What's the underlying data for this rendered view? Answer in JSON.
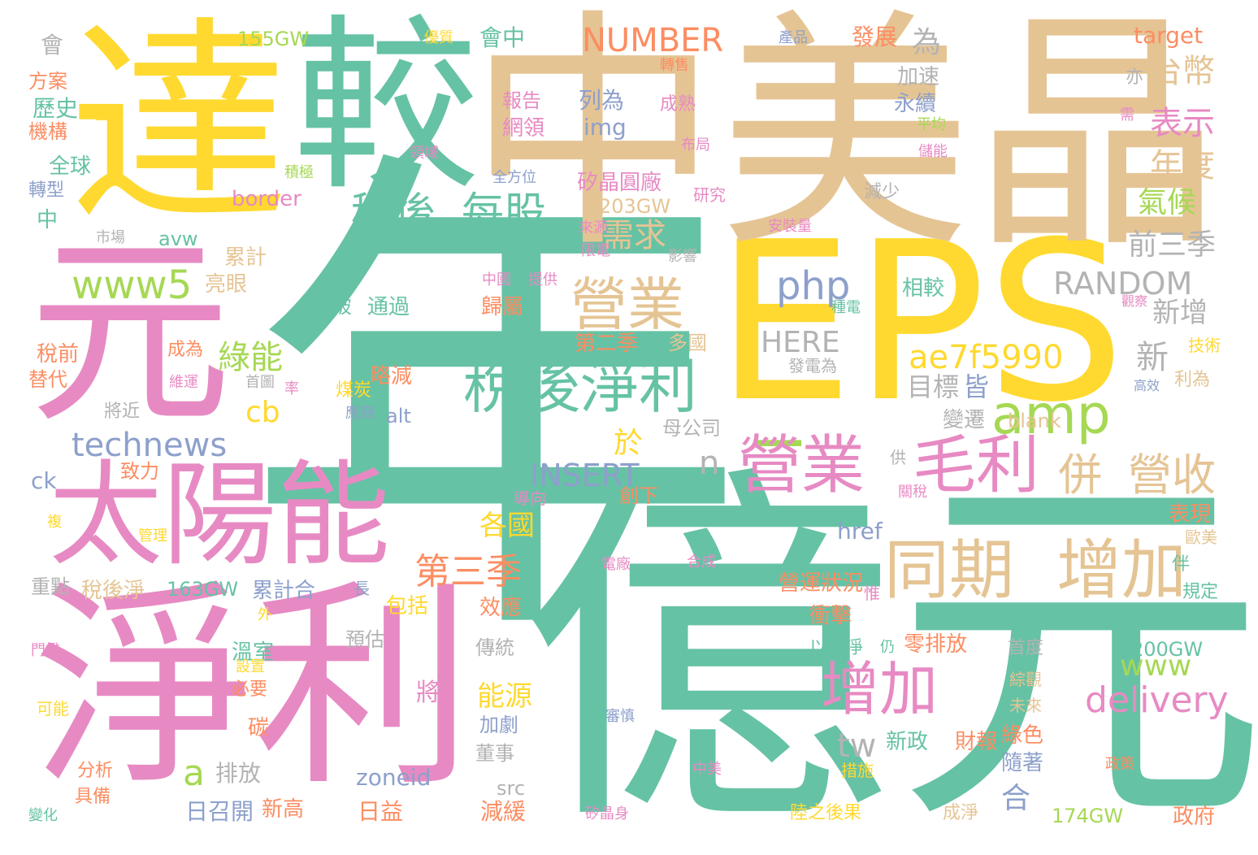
{
  "palette": {
    "green": "#66c2a5",
    "pink": "#e78ac3",
    "tan": "#e5c494",
    "yellow": "#ffd92f",
    "lime": "#a6d854",
    "orange": "#fc8d62",
    "blue": "#8da0cb",
    "gray": "#b3b3b3"
  },
  "words": [
    {
      "text": "年",
      "color": "green"
    },
    {
      "text": "億元",
      "color": "green"
    },
    {
      "text": "EPS",
      "color": "yellow"
    },
    {
      "text": "中美晶",
      "color": "tan"
    },
    {
      "text": "達",
      "color": "yellow"
    },
    {
      "text": "較",
      "color": "green"
    },
    {
      "text": "元",
      "color": "pink"
    },
    {
      "text": "太陽能",
      "color": "pink"
    },
    {
      "text": "淨利",
      "color": "pink"
    },
    {
      "text": "_",
      "color": "lime"
    },
    {
      "text": "稅後淨利",
      "color": "green"
    },
    {
      "text": "營業",
      "color": "pink"
    },
    {
      "text": "毛利",
      "color": "pink"
    },
    {
      "text": "同期",
      "color": "tan"
    },
    {
      "text": "增加",
      "color": "tan"
    },
    {
      "text": "增加",
      "color": "pink"
    },
    {
      "text": "營業",
      "color": "tan"
    },
    {
      "text": "稅後",
      "color": "green"
    },
    {
      "text": "每股",
      "color": "green"
    },
    {
      "text": "amp",
      "color": "lime"
    },
    {
      "text": "併",
      "color": "tan"
    },
    {
      "text": "營收",
      "color": "tan"
    },
    {
      "text": "ae7f5990",
      "color": "yellow"
    },
    {
      "text": "delivery",
      "color": "pink"
    },
    {
      "text": "RANDOM",
      "color": "gray"
    },
    {
      "text": "php",
      "color": "blue"
    },
    {
      "text": "www5",
      "color": "lime"
    },
    {
      "text": "technews",
      "color": "blue"
    },
    {
      "text": "NUMBER",
      "color": "orange"
    },
    {
      "text": "INSERT",
      "color": "blue"
    },
    {
      "text": "HERE",
      "color": "gray"
    },
    {
      "text": "綠能",
      "color": "lime"
    },
    {
      "text": "cb",
      "color": "yellow"
    },
    {
      "text": "第三季",
      "color": "orange"
    },
    {
      "text": "需求",
      "color": "tan"
    },
    {
      "text": "台幣",
      "color": "tan"
    },
    {
      "text": "表示",
      "color": "pink"
    },
    {
      "text": "年度",
      "color": "tan"
    },
    {
      "text": "氣候",
      "color": "lime"
    },
    {
      "text": "前三季",
      "color": "gray"
    },
    {
      "text": "新增",
      "color": "gray"
    },
    {
      "text": "新",
      "color": "gray"
    },
    {
      "text": "目標",
      "color": "gray"
    },
    {
      "text": "皆",
      "color": "blue"
    },
    {
      "text": "www",
      "color": "lime"
    },
    {
      "text": "a",
      "color": "lime"
    },
    {
      "text": "n",
      "color": "gray"
    },
    {
      "text": "tw",
      "color": "gray"
    },
    {
      "text": "各國",
      "color": "yellow"
    },
    {
      "text": "能源",
      "color": "yellow"
    },
    {
      "text": "合",
      "color": "blue"
    },
    {
      "text": "於",
      "color": "yellow"
    },
    {
      "text": "發展",
      "color": "orange"
    },
    {
      "text": "為",
      "color": "gray"
    },
    {
      "text": "target",
      "color": "orange"
    },
    {
      "text": "會中",
      "color": "green"
    },
    {
      "text": "155GW",
      "color": "lime"
    },
    {
      "text": "203GW",
      "color": "tan"
    },
    {
      "text": "163GW",
      "color": "green"
    },
    {
      "text": "200GW",
      "color": "green"
    },
    {
      "text": "174GW",
      "color": "lime"
    },
    {
      "text": "border",
      "color": "pink"
    },
    {
      "text": "avw",
      "color": "green"
    },
    {
      "text": "img",
      "color": "blue"
    },
    {
      "text": "href",
      "color": "blue"
    },
    {
      "text": "zoneid",
      "color": "blue"
    },
    {
      "text": "src",
      "color": "gray"
    },
    {
      "text": "blank",
      "color": "tan"
    },
    {
      "text": "alt",
      "color": "blue"
    },
    {
      "text": "ck",
      "color": "blue"
    },
    {
      "text": "列為",
      "color": "blue"
    },
    {
      "text": "網領",
      "color": "pink"
    },
    {
      "text": "報告",
      "color": "pink"
    },
    {
      "text": "加速",
      "color": "gray"
    },
    {
      "text": "永續",
      "color": "blue"
    },
    {
      "text": "矽晶圓廠",
      "color": "pink"
    },
    {
      "text": "營運狀況",
      "color": "orange"
    },
    {
      "text": "累計合",
      "color": "blue"
    },
    {
      "text": "稅後淨",
      "color": "tan"
    },
    {
      "text": "包括",
      "color": "yellow"
    },
    {
      "text": "效應",
      "color": "orange"
    },
    {
      "text": "日召開",
      "color": "blue"
    },
    {
      "text": "新高",
      "color": "orange"
    },
    {
      "text": "日益",
      "color": "orange"
    },
    {
      "text": "減緩",
      "color": "orange"
    },
    {
      "text": "政府",
      "color": "orange"
    },
    {
      "text": "新政",
      "color": "green"
    },
    {
      "text": "財報",
      "color": "orange"
    },
    {
      "text": "綠色",
      "color": "orange"
    },
    {
      "text": "隨著",
      "color": "blue"
    },
    {
      "text": "表現",
      "color": "orange"
    },
    {
      "text": "衝擊",
      "color": "orange"
    },
    {
      "text": "以潔淨",
      "color": "green"
    },
    {
      "text": "零排放",
      "color": "orange"
    },
    {
      "text": "溫室",
      "color": "green"
    },
    {
      "text": "排放",
      "color": "gray"
    },
    {
      "text": "歷史",
      "color": "green"
    },
    {
      "text": "全球",
      "color": "green"
    },
    {
      "text": "轉型",
      "color": "blue"
    },
    {
      "text": "方案",
      "color": "orange"
    },
    {
      "text": "機構",
      "color": "orange"
    },
    {
      "text": "中",
      "color": "green"
    },
    {
      "text": "會",
      "color": "gray"
    },
    {
      "text": "累計",
      "color": "tan"
    },
    {
      "text": "亮眼",
      "color": "tan"
    },
    {
      "text": "稅前",
      "color": "orange"
    },
    {
      "text": "替代",
      "color": "orange"
    },
    {
      "text": "通過",
      "color": "green"
    },
    {
      "text": "突破",
      "color": "green"
    },
    {
      "text": "歸屬",
      "color": "orange"
    },
    {
      "text": "第二季",
      "color": "orange"
    },
    {
      "text": "略減",
      "color": "orange"
    },
    {
      "text": "多國",
      "color": "tan"
    },
    {
      "text": "變遷",
      "color": "gray"
    },
    {
      "text": "母公司",
      "color": "gray"
    },
    {
      "text": "致力",
      "color": "orange"
    },
    {
      "text": "以達",
      "color": "green"
    },
    {
      "text": "創下",
      "color": "orange"
    },
    {
      "text": "成熟",
      "color": "pink"
    },
    {
      "text": "相較",
      "color": "green"
    },
    {
      "text": "減少",
      "color": "gray"
    },
    {
      "text": "研究",
      "color": "pink"
    },
    {
      "text": "分析",
      "color": "orange"
    },
    {
      "text": "具備",
      "color": "orange"
    },
    {
      "text": "預估",
      "color": "gray"
    },
    {
      "text": "重點",
      "color": "gray"
    },
    {
      "text": "傳統",
      "color": "gray"
    },
    {
      "text": "加劇",
      "color": "blue"
    },
    {
      "text": "董事",
      "color": "gray"
    },
    {
      "text": "成為",
      "color": "orange"
    },
    {
      "text": "將近",
      "color": "gray"
    },
    {
      "text": "未來",
      "color": "tan"
    },
    {
      "text": "綜觀",
      "color": "tan"
    },
    {
      "text": "首度",
      "color": "gray"
    },
    {
      "text": "成淨",
      "color": "tan"
    },
    {
      "text": "陸之後果",
      "color": "yellow"
    },
    {
      "text": "必要",
      "color": "orange"
    },
    {
      "text": "可能",
      "color": "yellow"
    },
    {
      "text": "碳",
      "color": "orange"
    },
    {
      "text": "將",
      "color": "pink"
    },
    {
      "text": "優質",
      "color": "yellow"
    },
    {
      "text": "產品",
      "color": "blue"
    },
    {
      "text": "轉售",
      "color": "orange"
    },
    {
      "text": "整合",
      "color": "yellow"
    },
    {
      "text": "領域",
      "color": "pink"
    },
    {
      "text": "積極",
      "color": "lime"
    },
    {
      "text": "全方位",
      "color": "blue"
    },
    {
      "text": "布局",
      "color": "pink"
    },
    {
      "text": "儲能",
      "color": "pink"
    },
    {
      "text": "平均",
      "color": "lime"
    },
    {
      "text": "需",
      "color": "pink"
    },
    {
      "text": "亦",
      "color": "gray"
    },
    {
      "text": "市場",
      "color": "gray"
    },
    {
      "text": "來源",
      "color": "pink"
    },
    {
      "text": "安裝量",
      "color": "pink"
    },
    {
      "text": "限電",
      "color": "pink"
    },
    {
      "text": "影響",
      "color": "gray"
    },
    {
      "text": "中國",
      "color": "pink"
    },
    {
      "text": "提供",
      "color": "pink"
    },
    {
      "text": "種電",
      "color": "green"
    },
    {
      "text": "觀察",
      "color": "pink"
    },
    {
      "text": "技術",
      "color": "yellow"
    },
    {
      "text": "高效",
      "color": "blue"
    },
    {
      "text": "利為",
      "color": "tan"
    },
    {
      "text": "發電為",
      "color": "gray"
    },
    {
      "text": "首圖",
      "color": "gray"
    },
    {
      "text": "率",
      "color": "pink"
    },
    {
      "text": "煤炭",
      "color": "yellow"
    },
    {
      "text": "應商",
      "color": "blue"
    },
    {
      "text": "維運",
      "color": "pink"
    },
    {
      "text": "導向",
      "color": "pink"
    },
    {
      "text": "關稅",
      "color": "pink"
    },
    {
      "text": "歐美",
      "color": "tan"
    },
    {
      "text": "規定",
      "color": "green"
    },
    {
      "text": "伴",
      "color": "green"
    },
    {
      "text": "惟",
      "color": "pink"
    },
    {
      "text": "電廠",
      "color": "pink"
    },
    {
      "text": "合成",
      "color": "pink"
    },
    {
      "text": "長",
      "color": "blue"
    },
    {
      "text": "外",
      "color": "yellow"
    },
    {
      "text": "門檻",
      "color": "pink"
    },
    {
      "text": "設置",
      "color": "yellow"
    },
    {
      "text": "仍",
      "color": "green"
    },
    {
      "text": "審慎",
      "color": "blue"
    },
    {
      "text": "中美",
      "color": "pink"
    },
    {
      "text": "措施",
      "color": "yellow"
    },
    {
      "text": "政策",
      "color": "orange"
    },
    {
      "text": "矽晶身",
      "color": "pink"
    },
    {
      "text": "變化",
      "color": "green"
    },
    {
      "text": "管理",
      "color": "yellow"
    },
    {
      "text": "複",
      "color": "yellow"
    },
    {
      "text": "供",
      "color": "gray"
    }
  ]
}
